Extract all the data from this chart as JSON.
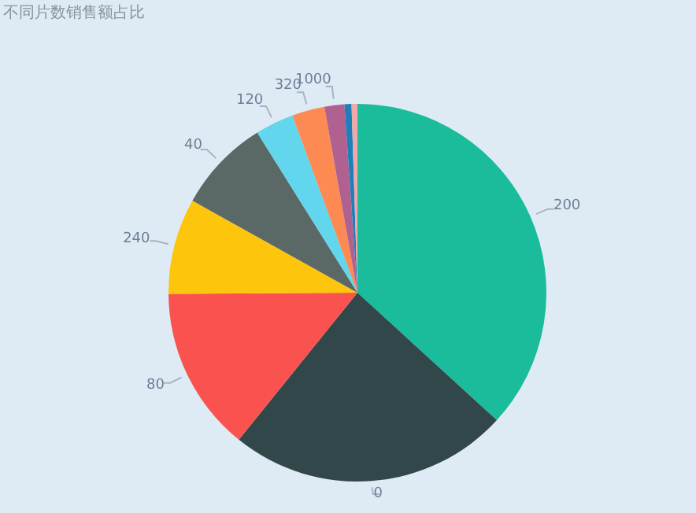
{
  "chart_data": {
    "type": "pie",
    "title": "不同片数销售额占比",
    "categories": [
      "200",
      "0",
      "80",
      "240",
      "40",
      "120",
      "320",
      "1000",
      null,
      null
    ],
    "values": [
      36.8,
      24.0,
      14.1,
      8.2,
      8.0,
      3.3,
      2.8,
      1.7,
      0.6,
      0.5
    ],
    "colors": [
      "#1abc9c",
      "#32474a",
      "#fa534f",
      "#fec50d",
      "#5b6966",
      "#62d6ec",
      "#fd8a52",
      "#b06190",
      "#1f7fb8",
      "#f1a8a8"
    ]
  }
}
